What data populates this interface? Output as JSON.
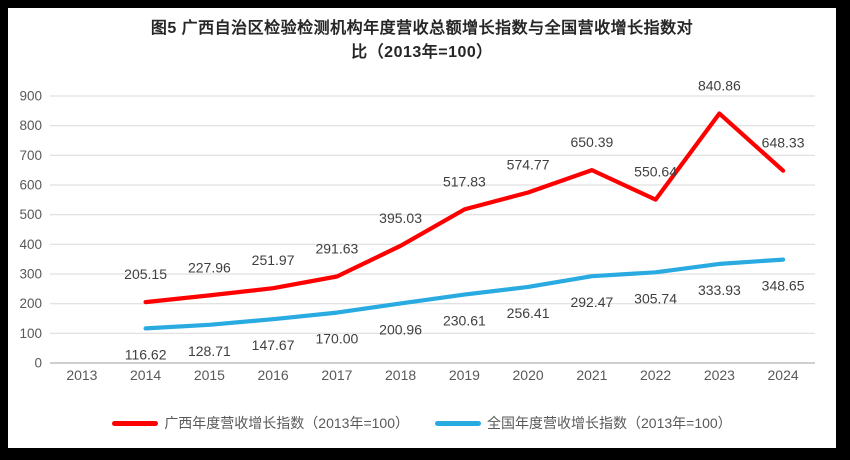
{
  "title": {
    "line1": "图5  广西自治区检验检测机构年度营收总额增长指数与全国营收增长指数对",
    "line2": "比（2013年=100）",
    "full": "图5 广西自治区检验检测机构年度营收总额增长指数与全国营收增长指数对比（2013年=100）"
  },
  "chart_data": {
    "type": "line",
    "title": "图5 广西自治区检验检测机构年度营收总额增长指数与全国营收增长指数对比（2013年=100）",
    "categories": [
      "2013",
      "2014",
      "2015",
      "2016",
      "2017",
      "2018",
      "2019",
      "2020",
      "2021",
      "2022",
      "2023",
      "2024"
    ],
    "series": [
      {
        "name": "广西年度营收增长指数（2013年=100）",
        "color": "#FF0000",
        "label_position": "above",
        "values": [
          null,
          205.15,
          227.96,
          251.97,
          291.63,
          395.03,
          517.83,
          574.77,
          650.39,
          550.64,
          840.86,
          648.33
        ]
      },
      {
        "name": "全国年度营收增长指数（2013年=100）",
        "color": "#29ABE2",
        "label_position": "below",
        "values": [
          null,
          116.62,
          128.71,
          147.67,
          170.0,
          200.96,
          230.61,
          256.41,
          292.47,
          305.74,
          333.93,
          348.65
        ]
      }
    ],
    "ylim": [
      0,
      900
    ],
    "ytick_step": 100,
    "grid": true,
    "legend_position": "bottom",
    "colors": {
      "grid": "#D9D9D9",
      "axis_line": "#BFBFBF",
      "tick_text": "#595959",
      "data_label_text": "#3F3F3F",
      "frame_border": "#000000",
      "background": "#FFFFFF"
    }
  }
}
